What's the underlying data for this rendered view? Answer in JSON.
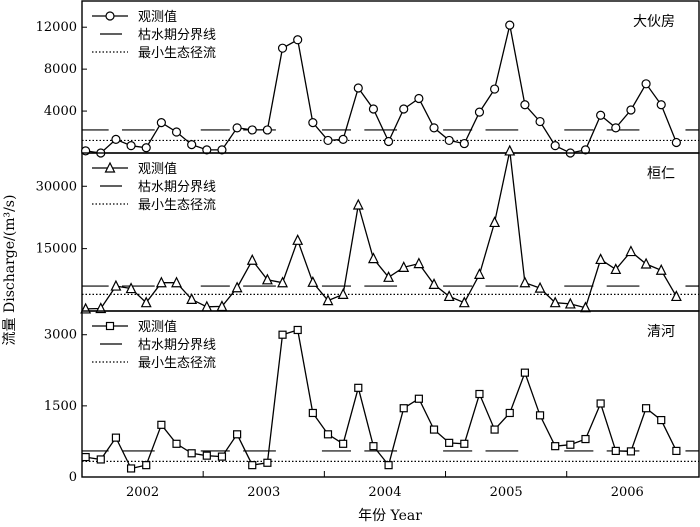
{
  "chart_data": {
    "type": "line",
    "ylabel": "流量 Discharge/(m³/s)",
    "xlabel": "年份 Year",
    "x_ticks": [
      "2002",
      "2003",
      "2004",
      "2005",
      "2006"
    ],
    "legend": {
      "observed": "观测值",
      "threshold": "枯水期分界线",
      "min_eco": "最小生态径流"
    },
    "legend_placement": "top-left",
    "grid": false,
    "panels": [
      {
        "station": "大伙房",
        "marker": "circle",
        "ylim": [
          0,
          14500
        ],
        "yticks": [
          4000,
          8000,
          12000
        ],
        "observed": [
          200,
          0,
          1300,
          700,
          500,
          2900,
          2000,
          800,
          300,
          300,
          2400,
          2200,
          2200,
          10000,
          10800,
          2900,
          1200,
          1300,
          6200,
          4200,
          1100,
          4200,
          5200,
          2400,
          1200,
          900,
          3900,
          6100,
          12200,
          4600,
          3000,
          700,
          0,
          300,
          3600,
          2400,
          4100,
          6600,
          4600,
          1000
        ],
        "threshold": [
          2200,
          2200,
          2200,
          2200,
          2200,
          2200
        ],
        "min_eco": 1200
      },
      {
        "station": "桓仁",
        "marker": "triangle",
        "ylim": [
          0,
          38000
        ],
        "yticks": [
          15000,
          30000
        ],
        "observed": [
          500,
          600,
          6000,
          5400,
          2000,
          6800,
          6800,
          2800,
          1000,
          1100,
          5600,
          12200,
          7500,
          6800,
          17000,
          6900,
          2500,
          4000,
          25500,
          12600,
          8100,
          10500,
          11400,
          6400,
          3500,
          2000,
          8800,
          21300,
          38500,
          6800,
          5500,
          2000,
          1700,
          800,
          12400,
          10000,
          14300,
          11300,
          9800,
          3500
        ],
        "threshold": [
          6000,
          6000,
          6000,
          6000,
          6000,
          6000
        ],
        "min_eco": 4000
      },
      {
        "station": "清河",
        "marker": "square",
        "ylim": [
          0,
          3500
        ],
        "yticks": [
          0,
          1500,
          3000
        ],
        "observed": [
          420,
          370,
          830,
          180,
          250,
          1100,
          700,
          500,
          450,
          430,
          900,
          250,
          300,
          3000,
          3100,
          1350,
          900,
          700,
          1880,
          650,
          250,
          1450,
          1650,
          1000,
          720,
          700,
          1750,
          1000,
          1350,
          2200,
          1300,
          650,
          680,
          800,
          1550,
          550,
          540,
          1450,
          1200,
          550
        ],
        "threshold": [
          550,
          550,
          550,
          550,
          550,
          550
        ],
        "min_eco": 330
      }
    ]
  }
}
